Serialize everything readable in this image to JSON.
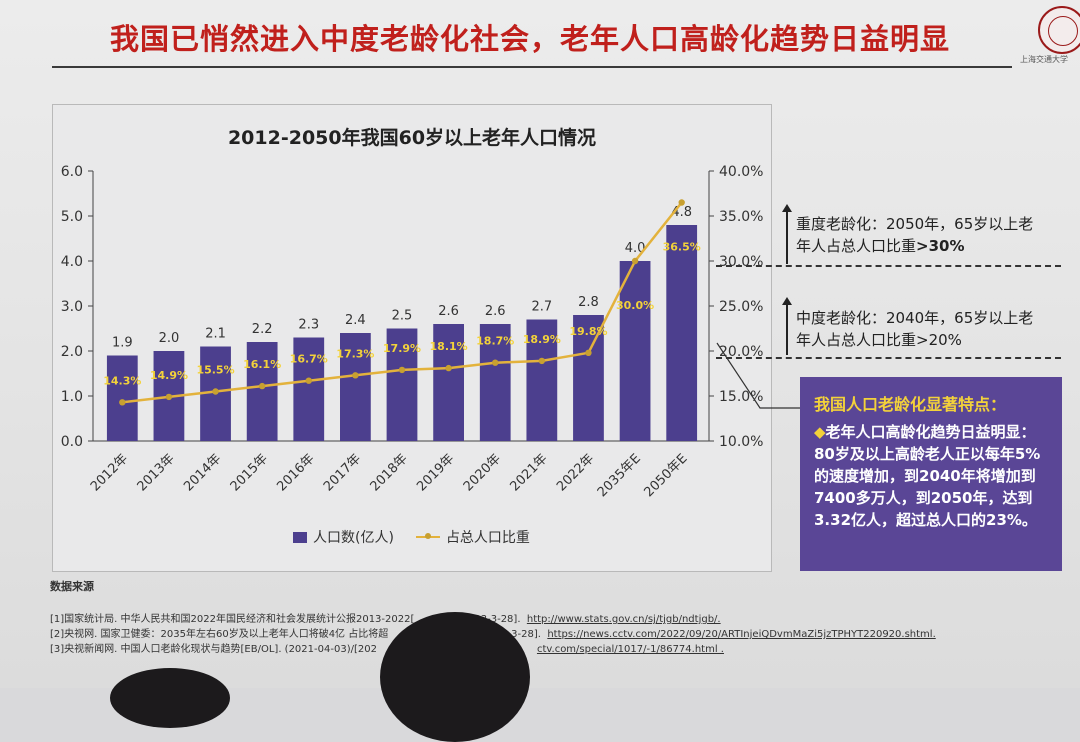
{
  "slide": {
    "title": "我国已悄然进入中度老龄化社会，老年人口高龄化趋势日益明显",
    "logo_text": "上海交通大学"
  },
  "chart_data": {
    "type": "bar",
    "title": "2012-2050年我国60岁以上老年人口情况",
    "categories": [
      "2012年",
      "2013年",
      "2014年",
      "2015年",
      "2016年",
      "2017年",
      "2018年",
      "2019年",
      "2020年",
      "2021年",
      "2022年",
      "2035年E",
      "2050年E"
    ],
    "series": [
      {
        "name": "人口数(亿人)",
        "type": "bar",
        "axis": "left",
        "values": [
          1.9,
          2.0,
          2.1,
          2.2,
          2.3,
          2.4,
          2.5,
          2.6,
          2.6,
          2.7,
          2.8,
          4.0,
          4.8
        ],
        "labels": [
          "1.9",
          "2.0",
          "2.1",
          "2.2",
          "2.3",
          "2.4",
          "2.5",
          "2.6",
          "2.6",
          "2.7",
          "2.8",
          "4.0",
          "4.8"
        ]
      },
      {
        "name": "占总人口比重",
        "type": "line",
        "axis": "right",
        "values": [
          14.3,
          14.9,
          15.5,
          16.1,
          16.7,
          17.3,
          17.9,
          18.1,
          18.7,
          18.9,
          19.8,
          30.0,
          36.5
        ],
        "labels": [
          "14.3%",
          "14.9%",
          "15.5%",
          "16.1%",
          "16.7%",
          "17.3%",
          "17.9%",
          "18.1%",
          "18.7%",
          "18.9%",
          "19.8%",
          "30.0%",
          "36.5%"
        ]
      }
    ],
    "y_left": {
      "ylim": [
        0,
        6.0
      ],
      "ticks": [
        "0.0",
        "1.0",
        "2.0",
        "3.0",
        "4.0",
        "5.0",
        "6.0"
      ]
    },
    "y_right": {
      "ylim": [
        10.0,
        40.0
      ],
      "ticks": [
        "10.0%",
        "15.0%",
        "20.0%",
        "25.0%",
        "30.0%",
        "35.0%",
        "40.0%"
      ]
    },
    "legend_position": "bottom",
    "colors": {
      "bar": "#4c3f8e",
      "line": "#e3b23c",
      "marker": "#c8a030"
    }
  },
  "annotations": {
    "severe": {
      "line1": "重度老龄化：2050年，65岁以上老",
      "line2_a": "年人占总人口比重",
      "line2_b": ">30%"
    },
    "moderate": {
      "line1": "中度老龄化：2040年，65岁以上老",
      "line2": "年人占总人口比重>20%"
    }
  },
  "highlight": {
    "heading": "我国人口老龄化显著特点：",
    "diamond": "◆",
    "body": "老年人口高龄化趋势日益明显：80岁及以上高龄老人正以每年5%的速度增加，到2040年将增加到7400多万人，到2050年，达到3.32亿人，超过总人口的23%。"
  },
  "sources": {
    "heading": "数据来源",
    "lines": [
      {
        "text": "[1]国家统计局. 中华人民共和国2022年国民经济和社会发展统计公报2013-2022[",
        "text2": "23-3-28].",
        "link": "http://www.stats.gov.cn/sj/tjgb/ndtjgb/."
      },
      {
        "text": "[2]央视网. 国家卫健委：2035年左右60岁及以上老年人口将破4亿 占比将超",
        "text2": "0-20)/[2023-3-28].",
        "link": "https://news.cctv.com/2022/09/20/ARTInjeiQDvmMaZi5jzTPHYT220920.shtml."
      },
      {
        "text": "[3]央视新闻网. 中国人口老龄化现状与趋势[EB/OL]. (2021-04-03)/[202",
        "text2": "",
        "link": "ctv.com/special/1017/-1/86774.html ."
      }
    ]
  }
}
